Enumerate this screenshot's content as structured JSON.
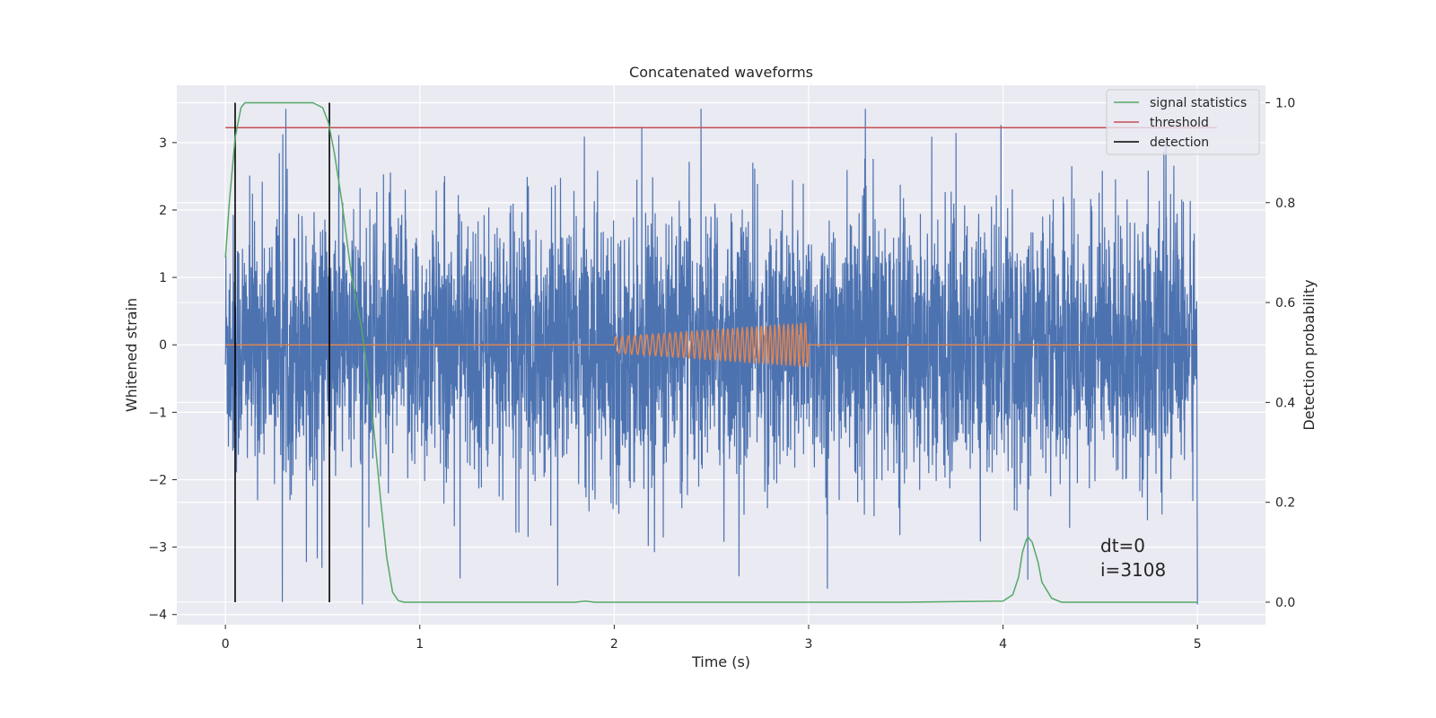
{
  "chart_data": {
    "type": "line",
    "title": "Concatenated waveforms",
    "xlabel": "Time (s)",
    "ylabel": "Whitened strain",
    "y2label": "Detection probability",
    "xlim": [
      -0.25,
      5.35
    ],
    "ylim": [
      -4.15,
      3.85
    ],
    "y2lim": [
      -0.045,
      1.035
    ],
    "xticks": [
      0,
      1,
      2,
      3,
      4,
      5
    ],
    "yticks": [
      -4,
      -3,
      -2,
      -1,
      0,
      1,
      2,
      3
    ],
    "y2ticks": [
      0.0,
      0.2,
      0.4,
      0.6,
      0.8,
      1.0
    ],
    "xticklabels": [
      "0",
      "1",
      "2",
      "3",
      "4",
      "5"
    ],
    "yticklabels": [
      "−4",
      "−3",
      "−2",
      "−1",
      "0",
      "1",
      "2",
      "3"
    ],
    "y2ticklabels": [
      "0.0",
      "0.2",
      "0.4",
      "0.6",
      "0.8",
      "1.0"
    ],
    "grid": true,
    "legend_placement": "top-right",
    "colors": {
      "background": "#eaeaf2",
      "noise": "#4c72b0",
      "injection": "#dd8452",
      "signal_statistics": "#55a868",
      "threshold": "#c44e52",
      "detection": "#000000"
    },
    "series": [
      {
        "name": "signal statistics",
        "axis": "right",
        "x": [
          0,
          0.02,
          0.05,
          0.08,
          0.1,
          0.12,
          0.15,
          0.2,
          0.3,
          0.4,
          0.45,
          0.5,
          0.53,
          0.56,
          0.6,
          0.65,
          0.7,
          0.75,
          0.8,
          0.83,
          0.86,
          0.89,
          0.92,
          1.0,
          1.5,
          1.8,
          1.85,
          1.9,
          2.0,
          3.0,
          3.5,
          4.0,
          4.05,
          4.08,
          4.1,
          4.12,
          4.13,
          4.15,
          4.18,
          4.2,
          4.25,
          4.3,
          4.5,
          5.0
        ],
        "y": [
          0.69,
          0.8,
          0.93,
          0.99,
          1.0,
          1.0,
          1.0,
          1.0,
          1.0,
          1.0,
          1.0,
          0.99,
          0.96,
          0.9,
          0.8,
          0.65,
          0.55,
          0.4,
          0.2,
          0.09,
          0.02,
          0.003,
          0.0,
          0.0,
          0.0,
          0.0,
          0.002,
          0.0,
          0.0,
          0.0,
          0.0,
          0.002,
          0.015,
          0.05,
          0.1,
          0.125,
          0.13,
          0.12,
          0.08,
          0.04,
          0.008,
          0.0,
          0.0,
          0.0
        ]
      },
      {
        "name": "threshold",
        "axis": "right",
        "x": [
          0,
          5.1
        ],
        "y": [
          0.95,
          0.95
        ]
      },
      {
        "name": "detection",
        "axis": "right",
        "type": "vline",
        "x": [
          0.05,
          0.535
        ],
        "y": [
          0.0,
          1.0
        ]
      }
    ],
    "noise_series": {
      "axis": "left",
      "x_range": [
        0,
        5
      ],
      "envelope_max": 3.5,
      "envelope_min": -3.85,
      "typical_amplitude": 2.3
    },
    "injection_series": {
      "axis": "left",
      "x_range": [
        2.0,
        3.0
      ],
      "amplitude_start": 0.12,
      "amplitude_end": 0.32,
      "baseline": 0
    },
    "annotations": [
      "dt=0",
      "i=3108"
    ]
  }
}
